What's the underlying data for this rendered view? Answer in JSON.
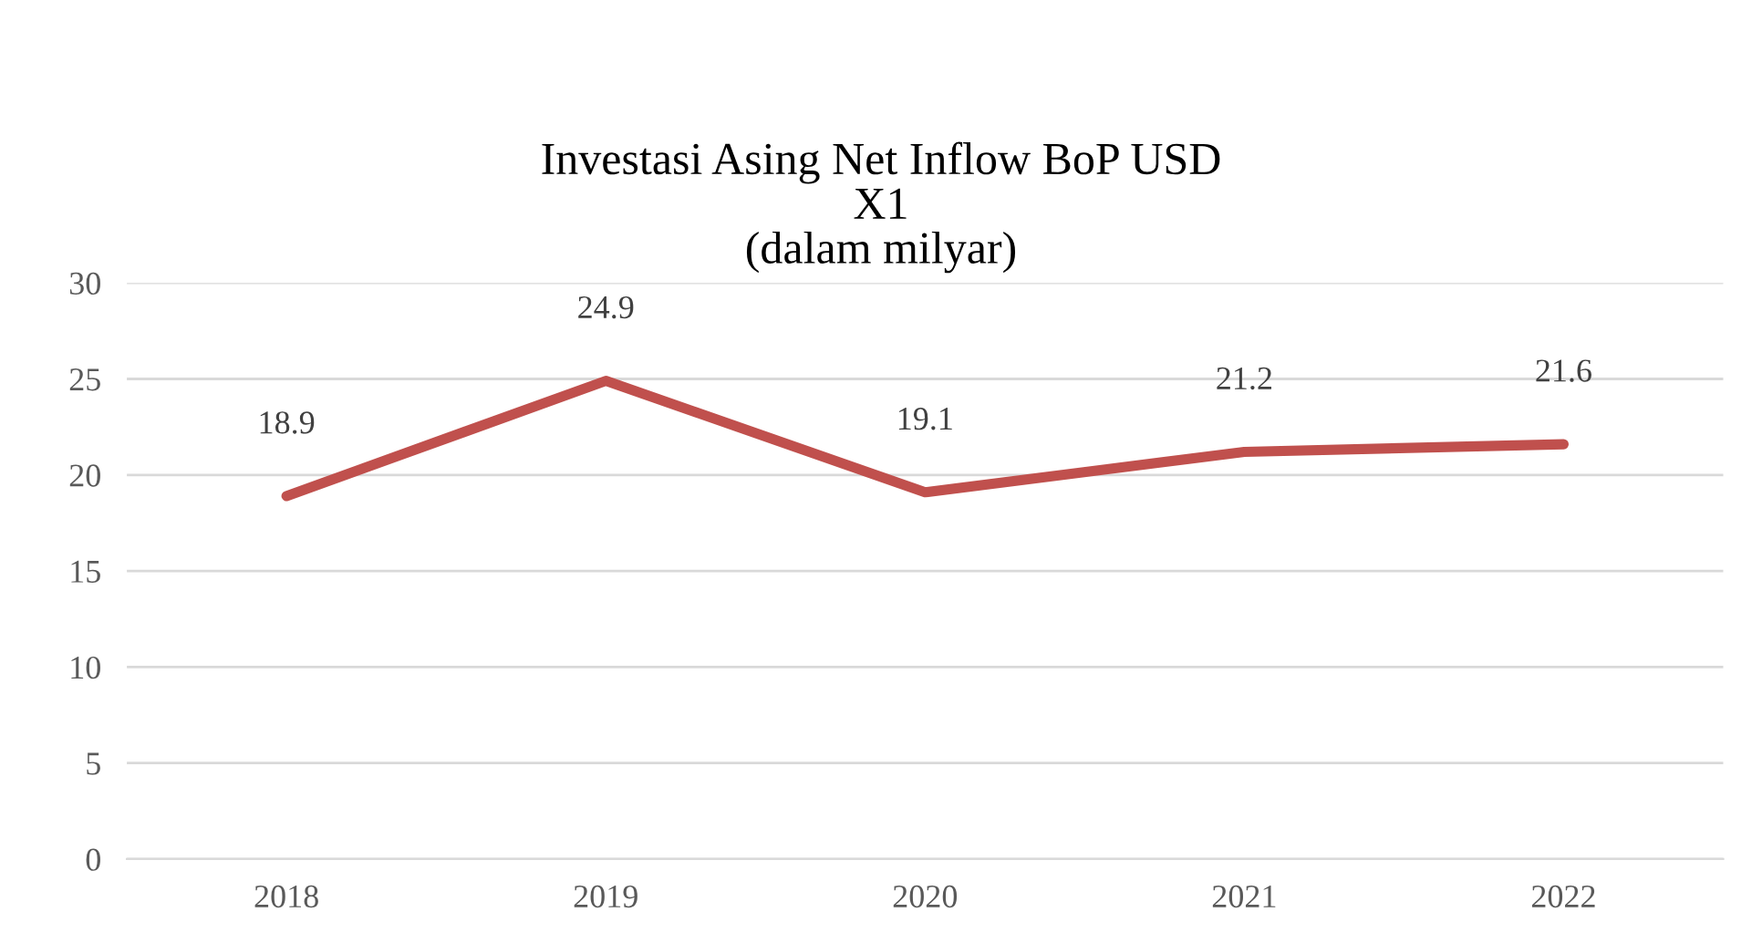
{
  "chart_data": {
    "type": "line",
    "title": "Investasi Asing Net Inflow BoP USD\nX1\n(dalam milyar)",
    "categories": [
      "2018",
      "2019",
      "2020",
      "2021",
      "2022"
    ],
    "series": [
      {
        "color": "#c0504d",
        "values": [
          18.9,
          24.9,
          19.1,
          21.2,
          21.6
        ]
      }
    ],
    "ylim": [
      0,
      30
    ],
    "yticks": [
      0,
      5,
      10,
      15,
      20,
      25,
      30
    ],
    "grid": "y",
    "data_labels": true,
    "legend": false,
    "marker": "none",
    "line_style": "solid"
  }
}
